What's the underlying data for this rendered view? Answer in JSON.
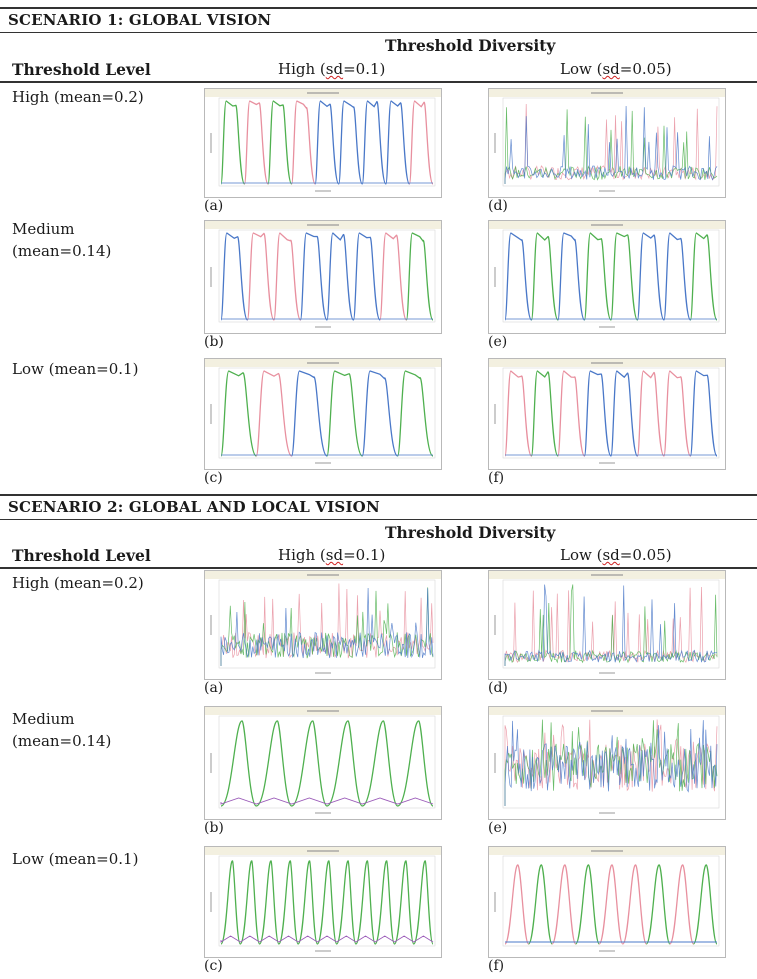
{
  "scenarios": [
    {
      "title": "SCENARIO 1: GLOBAL VISION",
      "column_group": "Threshold Diversity",
      "row_header": "Threshold Level",
      "col_high_prefix": "High (",
      "col_high_sd": "sd",
      "col_high_suffix": "=0.1)",
      "col_low_prefix": "Low (",
      "col_low_sd": "sd",
      "col_low_suffix": "=0.05)",
      "rows": [
        {
          "label": "High (mean=0.2)",
          "panels": [
            "(a)",
            "(d)"
          ]
        },
        {
          "label": "Medium (mean=0.14)",
          "panels": [
            "(b)",
            "(e)"
          ]
        },
        {
          "label": "Low (mean=0.1)",
          "panels": [
            "(c)",
            "(f)"
          ]
        }
      ]
    },
    {
      "title": "SCENARIO 2: GLOBAL AND LOCAL VISION",
      "column_group": "Threshold Diversity",
      "row_header": "Threshold Level",
      "col_high_prefix": "High (",
      "col_high_sd": "sd",
      "col_high_suffix": "=0.1)",
      "col_low_prefix": "Low (",
      "col_low_sd": "sd",
      "col_low_suffix": "=0.05)",
      "rows": [
        {
          "label": "High (mean=0.2)",
          "panels": [
            "(a)",
            "(d)"
          ]
        },
        {
          "label": "Medium (mean=0.14)",
          "panels": [
            "(b)",
            "(e)"
          ]
        },
        {
          "label": "Low (mean=0.1)",
          "panels": [
            "(c)",
            "(f)"
          ]
        }
      ]
    }
  ],
  "series_colors": {
    "red": "#e8909f",
    "green": "#4fb04f",
    "blue": "#4a78c8"
  },
  "chart_data": [
    {
      "panel": "S1 (a)",
      "type": "line",
      "pattern": "alternating-plateaus",
      "cycles": 9,
      "color_order": [
        "green",
        "red",
        "green",
        "red",
        "blue",
        "blue",
        "blue",
        "blue",
        "red"
      ]
    },
    {
      "panel": "S1 (b)",
      "type": "line",
      "pattern": "alternating-plateaus",
      "cycles": 8,
      "color_order": [
        "blue",
        "red",
        "red",
        "blue",
        "blue",
        "blue",
        "red",
        "green"
      ]
    },
    {
      "panel": "S1 (c)",
      "type": "line",
      "pattern": "alternating-plateaus",
      "cycles": 6,
      "color_order": [
        "green",
        "red",
        "blue",
        "green",
        "blue",
        "green"
      ]
    },
    {
      "panel": "S1 (d)",
      "type": "line",
      "pattern": "noisy-spikes"
    },
    {
      "panel": "S1 (e)",
      "type": "line",
      "pattern": "alternating-plateaus",
      "cycles": 8,
      "color_order": [
        "blue",
        "green",
        "blue",
        "green",
        "green",
        "blue",
        "blue",
        "green"
      ]
    },
    {
      "panel": "S1 (f)",
      "type": "line",
      "pattern": "alternating-plateaus",
      "cycles": 8,
      "color_order": [
        "red",
        "green",
        "red",
        "blue",
        "blue",
        "red",
        "red",
        "blue"
      ]
    },
    {
      "panel": "S2 (a)",
      "type": "line",
      "pattern": "noisy-spikes"
    },
    {
      "panel": "S2 (b)",
      "type": "line",
      "pattern": "green-growth-peaks",
      "cycles": 6
    },
    {
      "panel": "S2 (c)",
      "type": "line",
      "pattern": "green-peaks",
      "cycles": 11
    },
    {
      "panel": "S2 (d)",
      "type": "line",
      "pattern": "noisy-spikes"
    },
    {
      "panel": "S2 (e)",
      "type": "line",
      "pattern": "dense-noise"
    },
    {
      "panel": "S2 (f)",
      "type": "line",
      "pattern": "mixed-peaks",
      "cycles": 9
    }
  ]
}
